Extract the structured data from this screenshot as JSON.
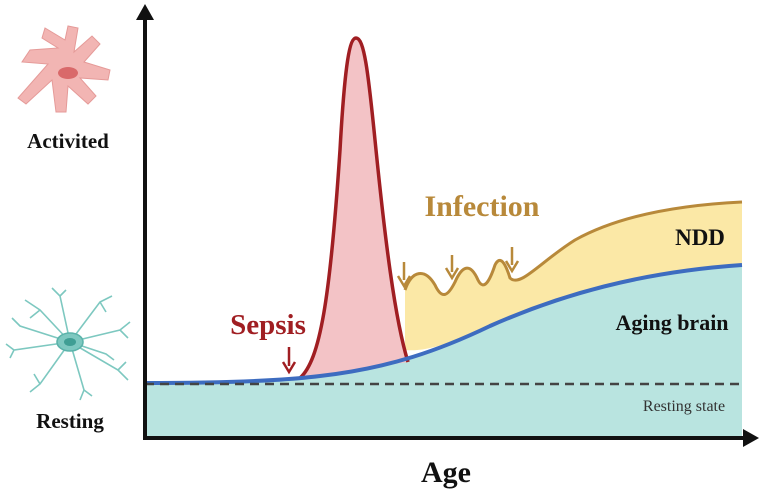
{
  "labels": {
    "y_top": "Activited",
    "y_bottom": "Resting",
    "x_axis": "Age",
    "sepsis": "Sepsis",
    "infection": "Infection",
    "ndd": "NDD",
    "aging_brain": "Aging brain",
    "resting_state": "Resting state"
  },
  "icons": {
    "activated_cell": "activated-microglia-icon",
    "resting_cell": "resting-microglia-icon"
  },
  "colors": {
    "aging_fill": "#b9e4e0",
    "aging_line": "#3d6cc0",
    "ndd_fill": "#fbe8a6",
    "ndd_line": "#b8893a",
    "sepsis_fill": "#f3c3c6",
    "sepsis_line": "#a01e22",
    "infection_text": "#b8893a",
    "activated_cell": "#f2b5b3",
    "resting_cell": "#7dc8c0"
  }
}
